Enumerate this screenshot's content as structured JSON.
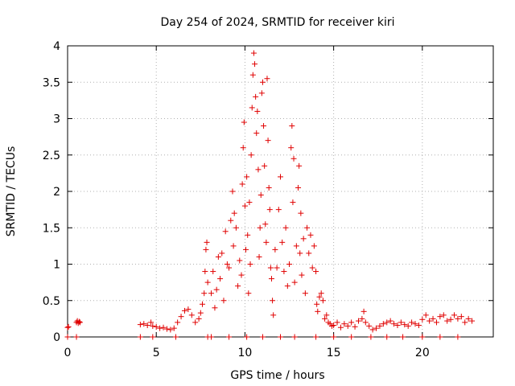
{
  "chart_data": {
    "type": "scatter",
    "title": "Day 254 of 2024, SRMTID for receiver kiri",
    "xlabel": "GPS time / hours",
    "ylabel": "SRMTID / TECUs",
    "xlim": [
      0,
      24
    ],
    "ylim": [
      0,
      4
    ],
    "x_ticks": [
      0,
      5,
      10,
      15,
      20
    ],
    "x_tick_labels": [
      "0",
      "5",
      "10",
      "15",
      "20"
    ],
    "y_ticks": [
      0,
      0.5,
      1,
      1.5,
      2,
      2.5,
      3,
      3.5,
      4
    ],
    "y_tick_labels": [
      "0",
      "0.5",
      "1",
      "1.5",
      "2",
      "2.5",
      "3",
      "3.5",
      "4"
    ],
    "grid": true,
    "marker": "+",
    "color": "#e00000",
    "series": [
      {
        "name": "SRMTID",
        "points": [
          [
            0.0,
            0.13
          ],
          [
            0.05,
            0.14
          ],
          [
            0.5,
            0.2
          ],
          [
            0.55,
            0.22
          ],
          [
            0.6,
            0.19
          ],
          [
            0.65,
            0.21
          ],
          [
            0.7,
            0.2
          ],
          [
            4.1,
            0.17
          ],
          [
            4.3,
            0.18
          ],
          [
            4.5,
            0.16
          ],
          [
            4.7,
            0.2
          ],
          [
            4.8,
            0.15
          ],
          [
            5.0,
            0.14
          ],
          [
            5.2,
            0.12
          ],
          [
            5.4,
            0.13
          ],
          [
            5.6,
            0.11
          ],
          [
            5.8,
            0.1
          ],
          [
            6.0,
            0.12
          ],
          [
            6.2,
            0.2
          ],
          [
            6.4,
            0.28
          ],
          [
            6.6,
            0.36
          ],
          [
            6.8,
            0.38
          ],
          [
            7.0,
            0.3
          ],
          [
            7.2,
            0.2
          ],
          [
            7.4,
            0.25
          ],
          [
            7.5,
            0.33
          ],
          [
            7.6,
            0.45
          ],
          [
            7.7,
            0.6
          ],
          [
            7.75,
            0.9
          ],
          [
            7.8,
            1.2
          ],
          [
            7.85,
            1.3
          ],
          [
            7.9,
            0.75
          ],
          [
            8.1,
            0.6
          ],
          [
            8.2,
            0.9
          ],
          [
            8.3,
            0.4
          ],
          [
            8.4,
            0.65
          ],
          [
            8.5,
            1.1
          ],
          [
            8.6,
            0.8
          ],
          [
            8.7,
            1.15
          ],
          [
            8.8,
            0.5
          ],
          [
            8.9,
            1.45
          ],
          [
            9.0,
            1.0
          ],
          [
            9.1,
            0.95
          ],
          [
            9.2,
            1.6
          ],
          [
            9.3,
            2.0
          ],
          [
            9.35,
            1.25
          ],
          [
            9.4,
            1.7
          ],
          [
            9.5,
            1.5
          ],
          [
            9.6,
            0.7
          ],
          [
            9.7,
            1.05
          ],
          [
            9.8,
            0.85
          ],
          [
            9.85,
            2.1
          ],
          [
            9.9,
            2.6
          ],
          [
            9.95,
            2.95
          ],
          [
            10.0,
            1.8
          ],
          [
            10.05,
            1.2
          ],
          [
            10.1,
            2.2
          ],
          [
            10.15,
            1.4
          ],
          [
            10.2,
            0.6
          ],
          [
            10.25,
            1.85
          ],
          [
            10.3,
            1.0
          ],
          [
            10.35,
            2.5
          ],
          [
            10.4,
            3.15
          ],
          [
            10.45,
            3.6
          ],
          [
            10.5,
            3.9
          ],
          [
            10.55,
            3.75
          ],
          [
            10.6,
            3.3
          ],
          [
            10.65,
            2.8
          ],
          [
            10.7,
            3.1
          ],
          [
            10.75,
            2.3
          ],
          [
            10.8,
            1.1
          ],
          [
            10.85,
            1.5
          ],
          [
            10.9,
            1.95
          ],
          [
            10.95,
            3.35
          ],
          [
            11.0,
            3.5
          ],
          [
            11.05,
            2.9
          ],
          [
            11.1,
            2.35
          ],
          [
            11.15,
            1.55
          ],
          [
            11.2,
            1.3
          ],
          [
            11.25,
            3.55
          ],
          [
            11.3,
            2.7
          ],
          [
            11.35,
            2.05
          ],
          [
            11.4,
            1.75
          ],
          [
            11.45,
            0.95
          ],
          [
            11.5,
            0.8
          ],
          [
            11.55,
            0.5
          ],
          [
            11.6,
            0.3
          ],
          [
            11.7,
            1.2
          ],
          [
            11.8,
            0.95
          ],
          [
            11.9,
            1.75
          ],
          [
            12.0,
            2.2
          ],
          [
            12.1,
            1.3
          ],
          [
            12.2,
            0.9
          ],
          [
            12.3,
            1.5
          ],
          [
            12.4,
            0.7
          ],
          [
            12.5,
            1.0
          ],
          [
            12.6,
            2.6
          ],
          [
            12.65,
            2.9
          ],
          [
            12.7,
            1.85
          ],
          [
            12.75,
            2.45
          ],
          [
            12.8,
            0.75
          ],
          [
            12.9,
            1.25
          ],
          [
            13.0,
            2.05
          ],
          [
            13.05,
            2.35
          ],
          [
            13.1,
            1.15
          ],
          [
            13.15,
            1.7
          ],
          [
            13.2,
            0.85
          ],
          [
            13.3,
            1.35
          ],
          [
            13.4,
            0.6
          ],
          [
            13.5,
            1.5
          ],
          [
            13.6,
            1.15
          ],
          [
            13.7,
            1.4
          ],
          [
            13.8,
            0.95
          ],
          [
            13.9,
            1.25
          ],
          [
            14.0,
            0.9
          ],
          [
            14.05,
            0.45
          ],
          [
            14.1,
            0.35
          ],
          [
            14.2,
            0.55
          ],
          [
            14.3,
            0.6
          ],
          [
            14.4,
            0.5
          ],
          [
            14.5,
            0.25
          ],
          [
            14.6,
            0.3
          ],
          [
            14.7,
            0.2
          ],
          [
            14.8,
            0.18
          ],
          [
            14.9,
            0.15
          ],
          [
            15.0,
            0.16
          ],
          [
            15.2,
            0.2
          ],
          [
            15.4,
            0.13
          ],
          [
            15.6,
            0.18
          ],
          [
            15.8,
            0.15
          ],
          [
            16.0,
            0.2
          ],
          [
            16.2,
            0.14
          ],
          [
            16.4,
            0.22
          ],
          [
            16.6,
            0.25
          ],
          [
            16.7,
            0.35
          ],
          [
            16.8,
            0.2
          ],
          [
            17.0,
            0.15
          ],
          [
            17.2,
            0.1
          ],
          [
            17.4,
            0.12
          ],
          [
            17.6,
            0.15
          ],
          [
            17.8,
            0.18
          ],
          [
            18.0,
            0.2
          ],
          [
            18.2,
            0.22
          ],
          [
            18.4,
            0.18
          ],
          [
            18.6,
            0.16
          ],
          [
            18.8,
            0.2
          ],
          [
            19.0,
            0.17
          ],
          [
            19.2,
            0.15
          ],
          [
            19.4,
            0.2
          ],
          [
            19.6,
            0.18
          ],
          [
            19.8,
            0.16
          ],
          [
            20.0,
            0.24
          ],
          [
            20.2,
            0.3
          ],
          [
            20.4,
            0.22
          ],
          [
            20.6,
            0.25
          ],
          [
            20.8,
            0.2
          ],
          [
            21.0,
            0.28
          ],
          [
            21.2,
            0.3
          ],
          [
            21.4,
            0.22
          ],
          [
            21.6,
            0.24
          ],
          [
            21.8,
            0.3
          ],
          [
            22.0,
            0.25
          ],
          [
            22.2,
            0.28
          ],
          [
            22.4,
            0.2
          ],
          [
            22.6,
            0.25
          ],
          [
            22.8,
            0.22
          ],
          [
            0.0,
            0.0
          ],
          [
            0.5,
            0.0
          ],
          [
            4.1,
            0.0
          ],
          [
            4.8,
            0.0
          ],
          [
            6.1,
            0.0
          ],
          [
            7.9,
            0.0
          ],
          [
            8.1,
            0.0
          ],
          [
            9.1,
            0.0
          ],
          [
            10.1,
            0.0
          ],
          [
            11.0,
            0.0
          ],
          [
            12.0,
            0.0
          ],
          [
            12.8,
            0.0
          ],
          [
            14.0,
            0.0
          ],
          [
            15.0,
            0.0
          ],
          [
            16.0,
            0.0
          ],
          [
            17.1,
            0.0
          ],
          [
            18.0,
            0.0
          ],
          [
            18.9,
            0.0
          ],
          [
            20.0,
            0.0
          ],
          [
            21.0,
            0.0
          ],
          [
            22.0,
            0.0
          ]
        ]
      }
    ]
  }
}
